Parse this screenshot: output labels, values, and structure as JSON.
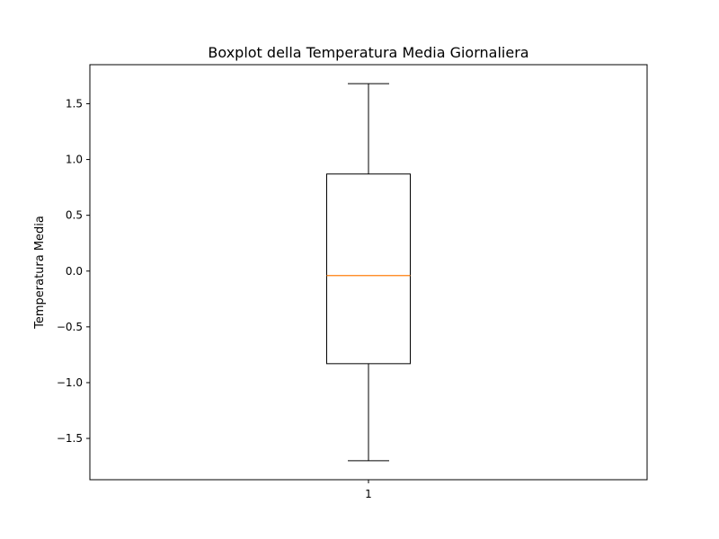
{
  "chart_data": {
    "type": "box",
    "title": "Boxplot della Temperatura Media Giornaliera",
    "xlabel": "",
    "ylabel": "Temperatura Media",
    "categories": [
      "1"
    ],
    "series": [
      {
        "whisker_low": -1.7,
        "q1": -0.83,
        "median": -0.04,
        "q3": 0.87,
        "whisker_high": 1.68
      }
    ],
    "ylim": [
      -1.87,
      1.85
    ],
    "yticks": [
      -1.5,
      -1.0,
      -0.5,
      0.0,
      0.5,
      1.0,
      1.5
    ],
    "ytick_labels": [
      "−1.5",
      "−1.0",
      "−0.5",
      "0.0",
      "0.5",
      "1.0",
      "1.5"
    ],
    "grid": false,
    "colors": {
      "box": "#000000",
      "median": "#ff7f0e",
      "whisker": "#000000"
    }
  }
}
